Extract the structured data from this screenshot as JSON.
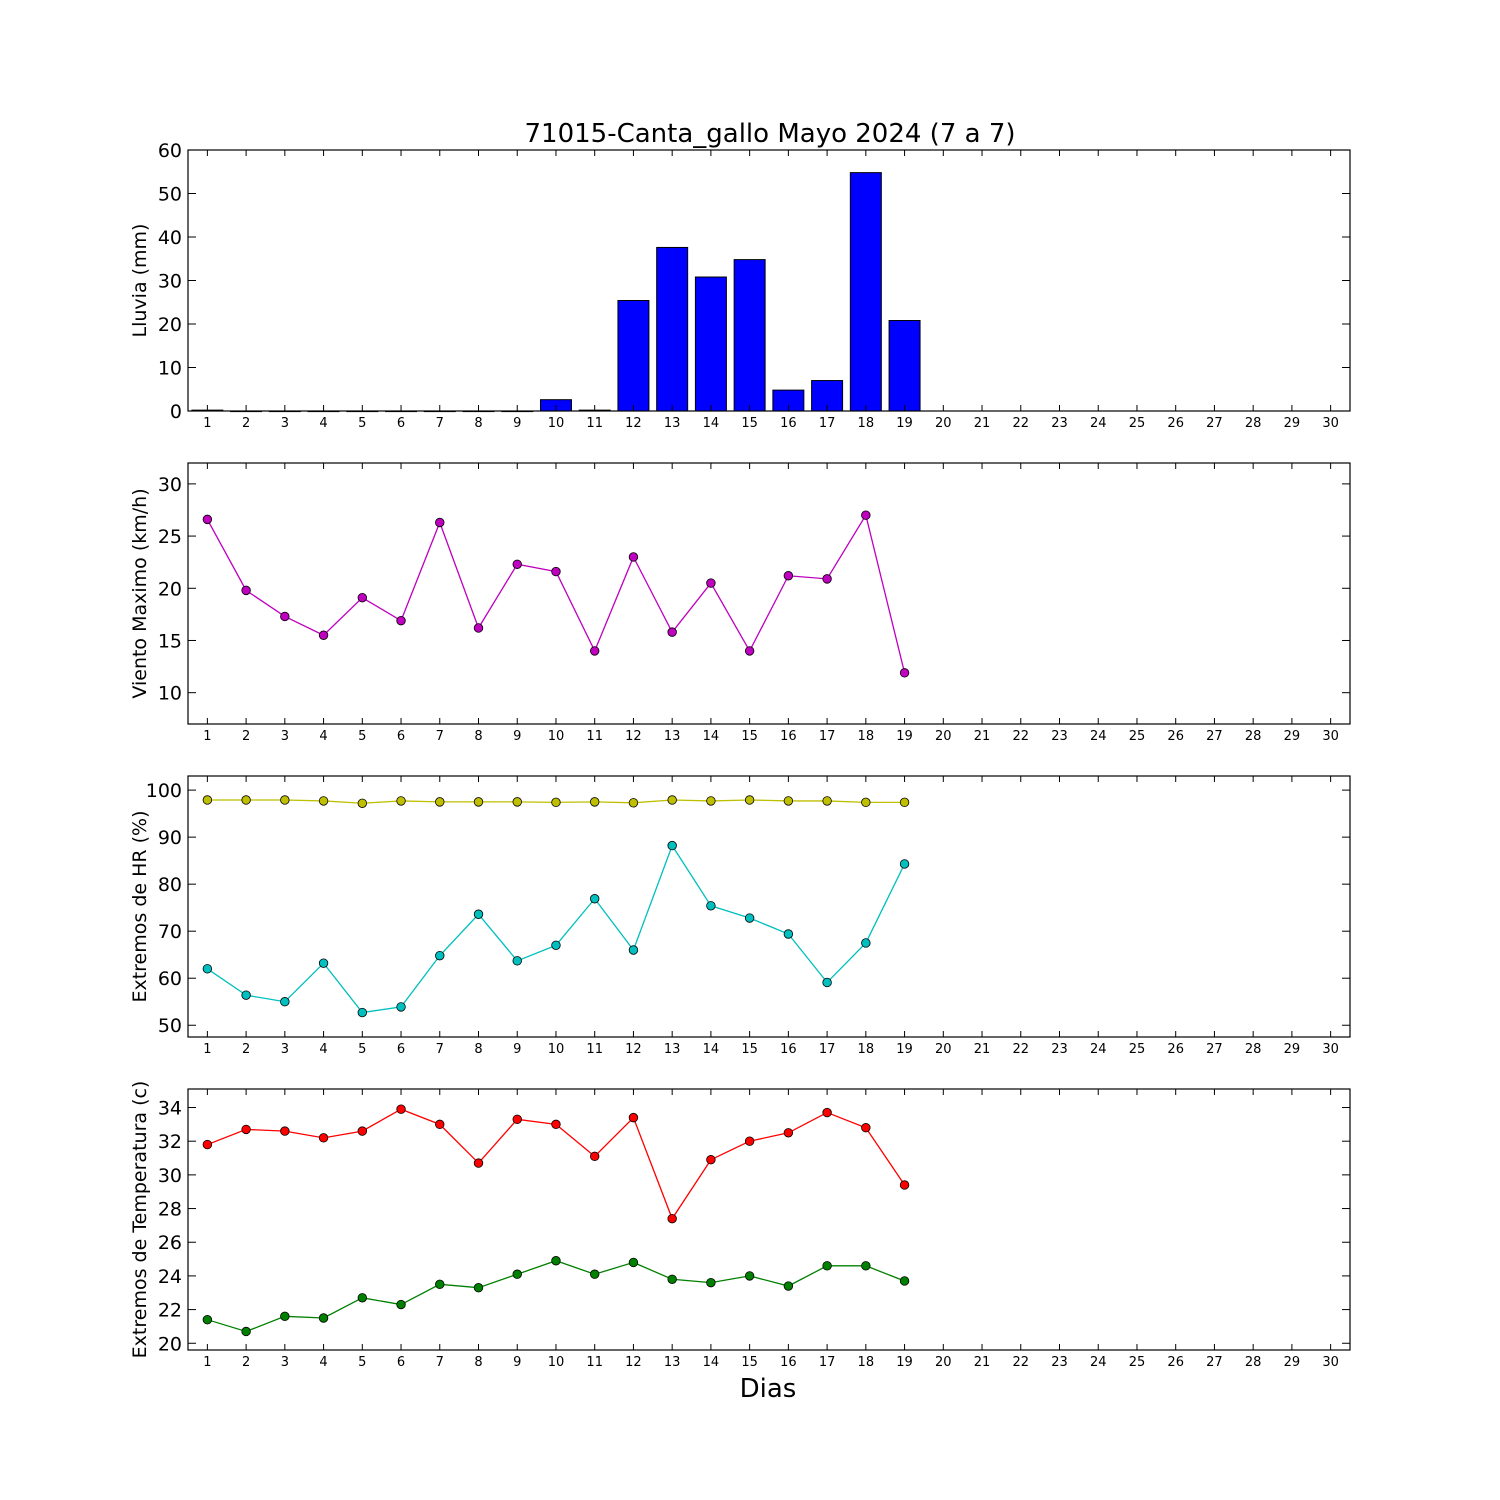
{
  "figure": {
    "title": "71015-Canta_gallo Mayo 2024  (7 a 7)",
    "xlabel": "Dias"
  },
  "chart_data": [
    {
      "type": "bar",
      "id": "lluvia",
      "ylabel": "Lluvia (mm)",
      "xlim": [
        0.5,
        30.5
      ],
      "ylim": [
        0,
        60
      ],
      "yticks": [
        0,
        10,
        20,
        30,
        40,
        50,
        60
      ],
      "xticks": [
        1,
        2,
        3,
        4,
        5,
        6,
        7,
        8,
        9,
        10,
        11,
        12,
        13,
        14,
        15,
        16,
        17,
        18,
        19,
        20,
        21,
        22,
        23,
        24,
        25,
        26,
        27,
        28,
        29,
        30
      ],
      "grid": false,
      "series": [
        {
          "color": "#0000ff",
          "x": [
            1,
            2,
            3,
            4,
            5,
            6,
            7,
            8,
            9,
            10,
            11,
            12,
            13,
            14,
            15,
            16,
            17,
            18,
            19
          ],
          "values": [
            0.2,
            0,
            0,
            0,
            0,
            0,
            0,
            0,
            0,
            2.6,
            0.2,
            25.4,
            37.6,
            30.8,
            34.8,
            4.8,
            7.0,
            54.8,
            20.8
          ]
        }
      ]
    },
    {
      "type": "line",
      "id": "viento",
      "ylabel": "Viento Maximo (km/h)",
      "xlim": [
        0.5,
        30.5
      ],
      "ylim": [
        7,
        32
      ],
      "yticks": [
        10,
        15,
        20,
        25,
        30
      ],
      "xticks": [
        1,
        2,
        3,
        4,
        5,
        6,
        7,
        8,
        9,
        10,
        11,
        12,
        13,
        14,
        15,
        16,
        17,
        18,
        19,
        20,
        21,
        22,
        23,
        24,
        25,
        26,
        27,
        28,
        29,
        30
      ],
      "grid": false,
      "series": [
        {
          "color": "#bf00bf",
          "x": [
            1,
            2,
            3,
            4,
            5,
            6,
            7,
            8,
            9,
            10,
            11,
            12,
            13,
            14,
            15,
            16,
            17,
            18,
            19
          ],
          "values": [
            26.6,
            19.8,
            17.3,
            15.5,
            19.1,
            16.9,
            26.3,
            16.2,
            22.3,
            21.6,
            14.0,
            23.0,
            15.8,
            20.5,
            14.0,
            21.2,
            20.9,
            27.0,
            11.9
          ]
        }
      ]
    },
    {
      "type": "line",
      "id": "humedad",
      "ylabel": "Extremos de HR (%)",
      "xlim": [
        0.5,
        30.5
      ],
      "ylim": [
        47.5,
        103
      ],
      "yticks": [
        50,
        60,
        70,
        80,
        90,
        100
      ],
      "xticks": [
        1,
        2,
        3,
        4,
        5,
        6,
        7,
        8,
        9,
        10,
        11,
        12,
        13,
        14,
        15,
        16,
        17,
        18,
        19,
        20,
        21,
        22,
        23,
        24,
        25,
        26,
        27,
        28,
        29,
        30
      ],
      "grid": false,
      "series": [
        {
          "color": "#bfbf00",
          "x": [
            1,
            2,
            3,
            4,
            5,
            6,
            7,
            8,
            9,
            10,
            11,
            12,
            13,
            14,
            15,
            16,
            17,
            18,
            19
          ],
          "values": [
            97.9,
            97.9,
            97.9,
            97.7,
            97.2,
            97.7,
            97.5,
            97.5,
            97.5,
            97.4,
            97.5,
            97.3,
            97.9,
            97.7,
            97.9,
            97.7,
            97.7,
            97.4,
            97.4
          ]
        },
        {
          "color": "#00bfbf",
          "x": [
            1,
            2,
            3,
            4,
            5,
            6,
            7,
            8,
            9,
            10,
            11,
            12,
            13,
            14,
            15,
            16,
            17,
            18,
            19
          ],
          "values": [
            62.0,
            56.4,
            55.0,
            63.2,
            52.7,
            53.9,
            64.8,
            73.6,
            63.7,
            67.0,
            76.9,
            66.0,
            88.2,
            75.4,
            72.8,
            69.4,
            59.1,
            67.5,
            84.3
          ]
        }
      ]
    },
    {
      "type": "line",
      "id": "temperatura",
      "ylabel": "Extremos de Temperatura (c)",
      "xlim": [
        0.5,
        30.5
      ],
      "ylim": [
        19.6,
        35.1
      ],
      "yticks": [
        20,
        22,
        24,
        26,
        28,
        30,
        32,
        34
      ],
      "xticks": [
        1,
        2,
        3,
        4,
        5,
        6,
        7,
        8,
        9,
        10,
        11,
        12,
        13,
        14,
        15,
        16,
        17,
        18,
        19,
        20,
        21,
        22,
        23,
        24,
        25,
        26,
        27,
        28,
        29,
        30
      ],
      "grid": false,
      "series": [
        {
          "color": "#ff0000",
          "x": [
            1,
            2,
            3,
            4,
            5,
            6,
            7,
            8,
            9,
            10,
            11,
            12,
            13,
            14,
            15,
            16,
            17,
            18,
            19
          ],
          "values": [
            31.8,
            32.7,
            32.6,
            32.2,
            32.6,
            33.9,
            33.0,
            30.7,
            33.3,
            33.0,
            31.1,
            33.4,
            27.4,
            30.9,
            32.0,
            32.5,
            33.7,
            32.8,
            29.4
          ]
        },
        {
          "color": "#008000",
          "x": [
            1,
            2,
            3,
            4,
            5,
            6,
            7,
            8,
            9,
            10,
            11,
            12,
            13,
            14,
            15,
            16,
            17,
            18,
            19
          ],
          "values": [
            21.4,
            20.7,
            21.6,
            21.5,
            22.7,
            22.3,
            23.5,
            23.3,
            24.1,
            24.9,
            24.1,
            24.8,
            23.8,
            23.6,
            24.0,
            23.4,
            24.6,
            24.6,
            23.7
          ]
        }
      ]
    }
  ]
}
